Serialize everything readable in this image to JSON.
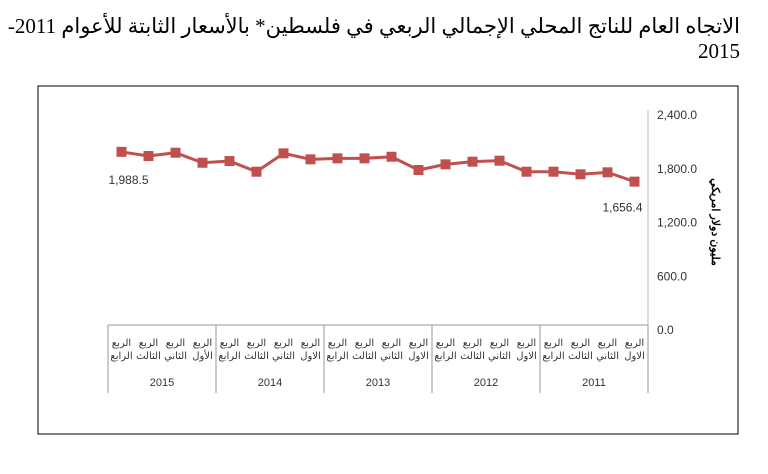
{
  "chart_data": {
    "type": "line",
    "title": "الاتجاه العام للناتج المحلي الإجمالي الربعي في فلسطين* بالأسعار الثابتة للأعوام 2011-2015",
    "ylabel": "مليون دولار امريكي",
    "xlabel": "",
    "ylim": [
      0,
      2400
    ],
    "yticks": [
      "0.0",
      "600.0",
      "1,200.0",
      "1,800.0",
      "2,400.0"
    ],
    "x_direction": "right-to-left",
    "grid": false,
    "years": [
      "2011",
      "2012",
      "2013",
      "2014",
      "2015"
    ],
    "quarters": [
      [
        "الربع",
        "الاول"
      ],
      [
        "الربع",
        "الثاني"
      ],
      [
        "الربع",
        "الثالث"
      ],
      [
        "الربع",
        "الرابع"
      ]
    ],
    "quarters_2015": [
      [
        "الربع",
        "الأول"
      ],
      [
        "الربع",
        "الثاني"
      ],
      [
        "الربع",
        "الثالث"
      ],
      [
        "الربع",
        "الرابع"
      ]
    ],
    "values": [
      1656.4,
      1760,
      1738,
      1767,
      1767,
      1890,
      1879,
      1849,
      1786,
      1934,
      1916,
      1916,
      1905,
      1972,
      1767,
      1886,
      1867,
      1979,
      1942,
      1988.5
    ],
    "data_labels": {
      "first": "1,656.4",
      "last": "1,988.5"
    },
    "series_color": "#C0504D"
  }
}
